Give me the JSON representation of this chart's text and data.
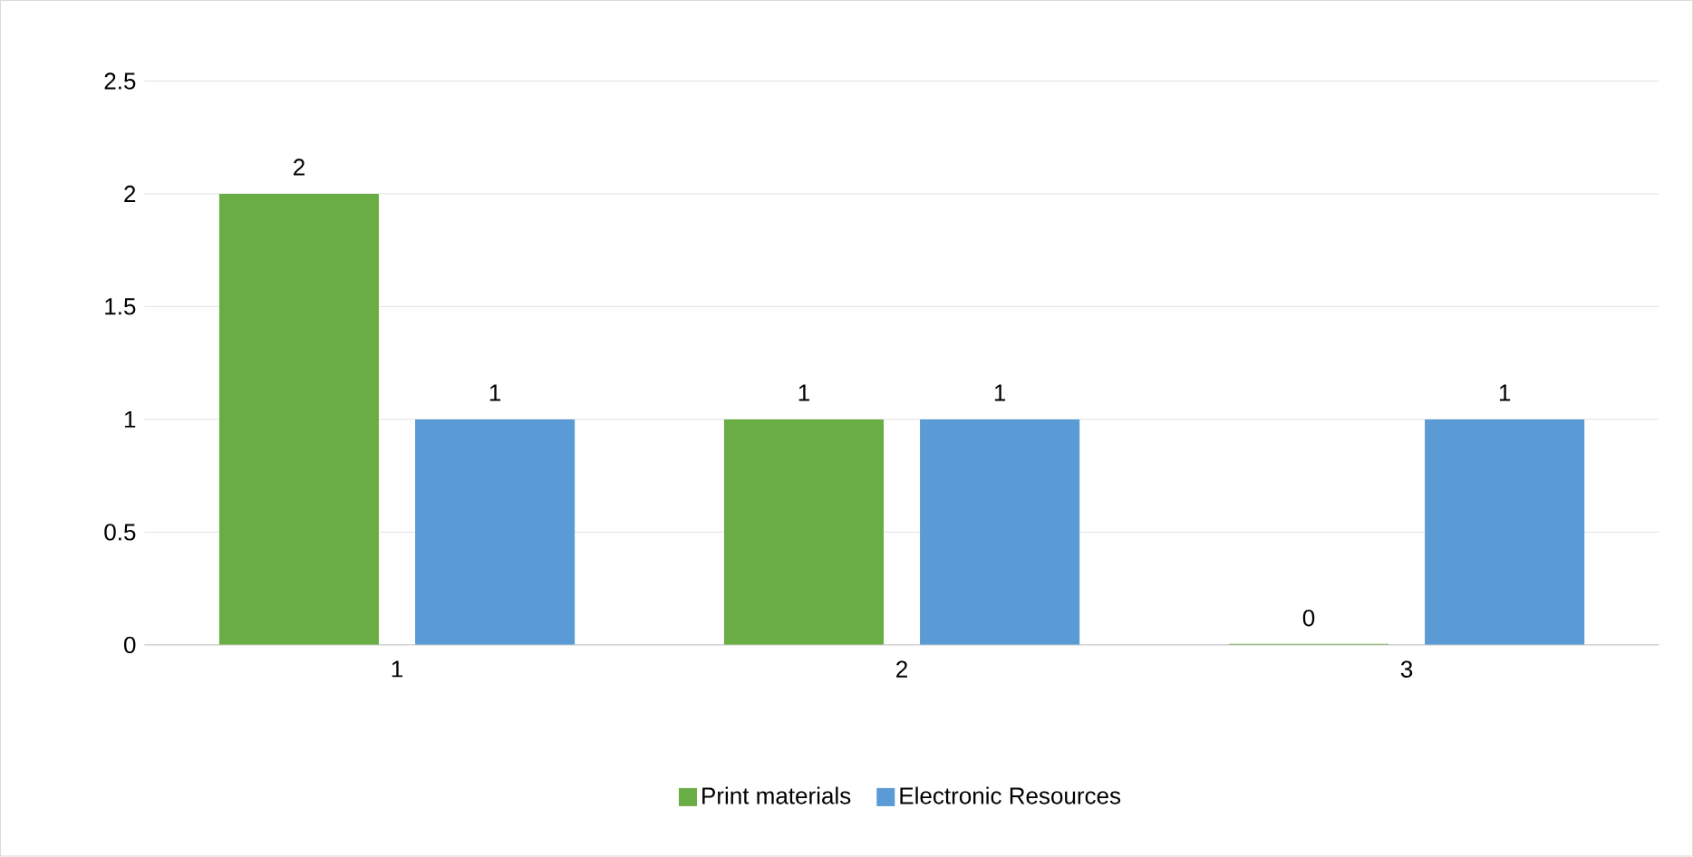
{
  "chart_data": {
    "type": "bar",
    "categories": [
      "1",
      "2",
      "3"
    ],
    "series": [
      {
        "name": "Print materials",
        "color": "#6aad45",
        "values": [
          2,
          1,
          0
        ]
      },
      {
        "name": "Electronic Resources",
        "color": "#5b9bd5",
        "values": [
          1,
          1,
          1
        ]
      }
    ],
    "ylim": [
      0,
      2.5
    ],
    "yticks": [
      0,
      0.5,
      1,
      1.5,
      2,
      2.5
    ],
    "grid": "y",
    "legend": "bottom",
    "data_labels": true
  }
}
